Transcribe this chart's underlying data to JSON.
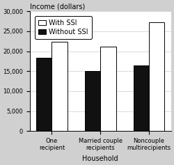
{
  "categories": [
    "One\nrecipient",
    "Married couple\nrecipients",
    "Noncouple\nmultirecipients"
  ],
  "with_ssi": [
    22300,
    21200,
    27200
  ],
  "without_ssi": [
    18400,
    15000,
    16500
  ],
  "bar_color_with": "#ffffff",
  "bar_color_without": "#111111",
  "bar_edgecolor": "#000000",
  "title": "Income (dollars)",
  "xlabel": "Household",
  "ylim": [
    0,
    30000
  ],
  "yticks": [
    0,
    5000,
    10000,
    15000,
    20000,
    25000,
    30000
  ],
  "ytick_labels": [
    "0",
    "5,000",
    "10,000",
    "15,000",
    "20,000",
    "25,000",
    "30,000"
  ],
  "figure_bg": "#d0d0d0",
  "plot_bg": "#ffffff",
  "legend_labels": [
    "With SSI",
    "Without SSI"
  ],
  "title_fontsize": 7,
  "axis_fontsize": 7,
  "tick_fontsize": 6,
  "legend_fontsize": 7,
  "bar_width": 0.32
}
